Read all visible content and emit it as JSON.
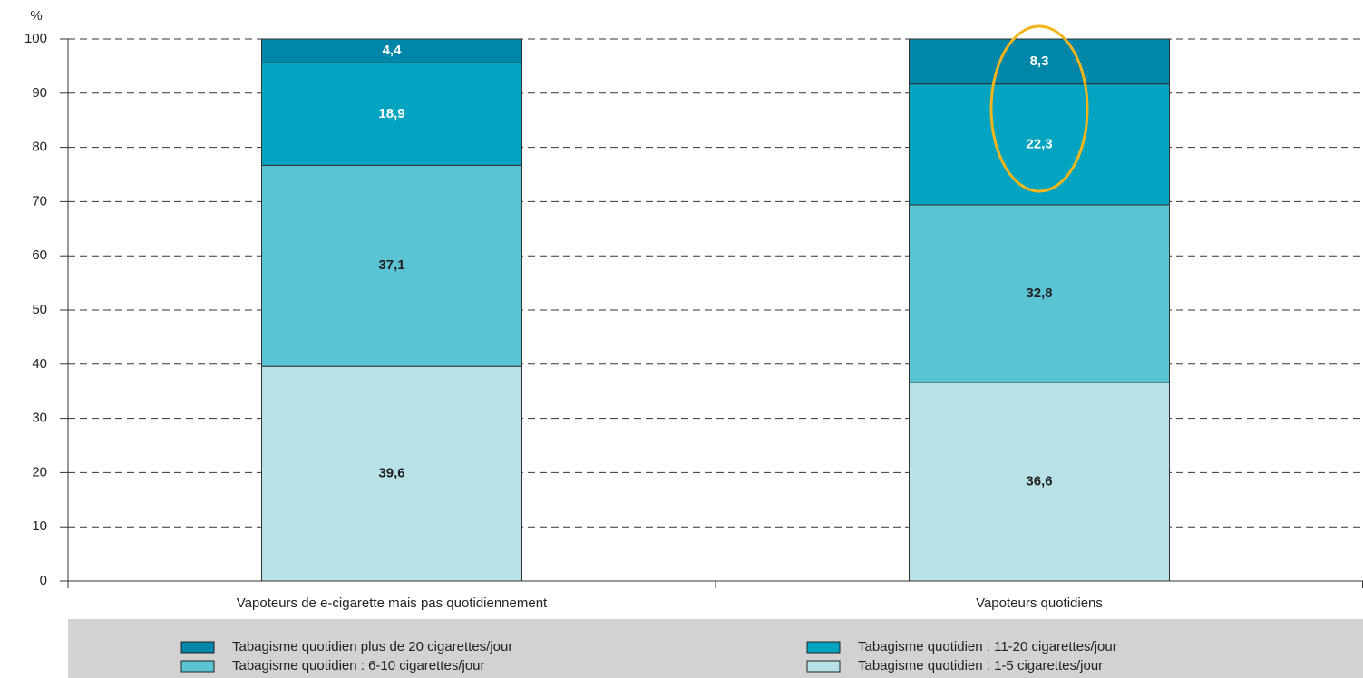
{
  "chart_data": {
    "type": "stacked_bar",
    "y_label": "%",
    "categories": [
      "Vapoteurs de e-cigarette mais pas quotidiennement",
      "Vapoteurs quotidiens"
    ],
    "series": [
      {
        "name": "Tabagisme quotidien : 1-5 cigarettes/jour",
        "color": "#b8e2e8",
        "values": [
          39.6,
          36.6
        ],
        "value_labels": [
          "39,6",
          "36,6"
        ]
      },
      {
        "name": "Tabagisme quotidien : 6-10 cigarettes/jour",
        "color": "#5bc4d4",
        "values": [
          37.1,
          32.8
        ],
        "value_labels": [
          "37,1",
          "32,8"
        ]
      },
      {
        "name": "Tabagisme quotidien : 11-20 cigarettes/jour",
        "color": "#00a4c0",
        "values": [
          18.9,
          22.3
        ],
        "value_labels": [
          "18,9",
          "22,3"
        ]
      },
      {
        "name": "Tabagisme quotidien plus de 20 cigarettes/jour",
        "color": "#0086a8",
        "values": [
          4.4,
          8.3
        ],
        "value_labels": [
          "4,4",
          "8,3"
        ]
      }
    ],
    "ylim": [
      0,
      100
    ],
    "yticks": [
      0,
      10,
      20,
      30,
      40,
      50,
      60,
      70,
      80,
      90,
      100
    ],
    "grid": true
  }
}
